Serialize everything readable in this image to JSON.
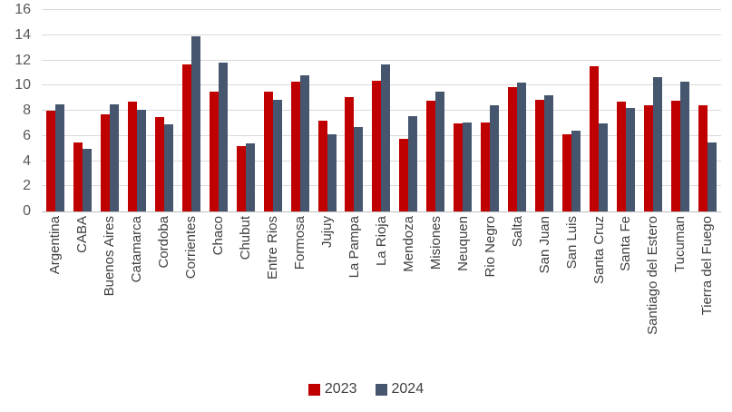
{
  "chart_data": {
    "type": "bar",
    "title": "",
    "xlabel": "",
    "ylabel": "",
    "ylim": [
      0,
      16
    ],
    "ytick_step": 2,
    "yticks": [
      0,
      2,
      4,
      6,
      8,
      10,
      12,
      14,
      16
    ],
    "grid": "horizontal",
    "gridline_color": "#d9d9d9",
    "legend_position": "bottom-center",
    "categories": [
      "Argentina",
      "CABA",
      "Buenos Aires",
      "Catamarca",
      "Cordoba",
      "Corrientes",
      "Chaco",
      "Chubut",
      "Entre Rios",
      "Formosa",
      "Jujuy",
      "La Pampa",
      "La Rioja",
      "Mendoza",
      "Misiones",
      "Neuquen",
      "Rio Negro",
      "Salta",
      "San Juan",
      "San Luis",
      "Santa Cruz",
      "Santa Fe",
      "Santiago del Estero",
      "Tucuman",
      "Tierra del Fuego"
    ],
    "series": [
      {
        "name": "2023",
        "color": "#c00000",
        "values": [
          8.0,
          5.5,
          7.7,
          8.7,
          7.5,
          11.7,
          9.5,
          5.2,
          9.5,
          10.3,
          7.2,
          9.1,
          10.4,
          5.8,
          8.8,
          7.0,
          7.1,
          9.9,
          8.9,
          6.1,
          11.5,
          8.7,
          8.4,
          8.8,
          8.4
        ]
      },
      {
        "name": "2024",
        "color": "#46566e",
        "values": [
          8.5,
          5.0,
          8.5,
          8.1,
          6.9,
          13.9,
          11.8,
          5.4,
          8.9,
          10.8,
          6.1,
          6.7,
          11.7,
          7.6,
          9.5,
          7.1,
          8.4,
          10.2,
          9.2,
          6.4,
          7.0,
          8.2,
          10.7,
          10.3,
          5.5
        ]
      }
    ]
  },
  "colors": {
    "axis_text": "#595959",
    "category_text": "#404040",
    "gridline": "#d9d9d9",
    "baseline": "#bfbfbf",
    "background": "#ffffff"
  }
}
